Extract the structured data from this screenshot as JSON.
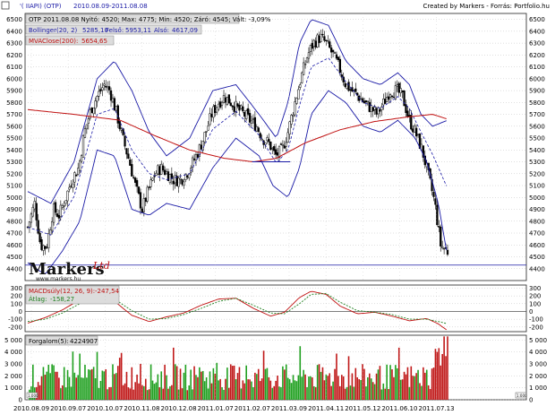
{
  "header": {
    "symbol": "'( IIAPI)  (OTP)",
    "range": "2010.08.09-2011.08.08",
    "credit": "Created by Markers - Forrás: Portfolio.hu"
  },
  "price_panel": {
    "info_line": "OTP 2011.08.08 Nyitó: 4520; Max: 4775; Min: 4520; Záró: 4545; Vált: -3,09%",
    "bollinger_label": "Bollinger(20, 2)",
    "bollinger_mid": "5285,10",
    "bollinger_upper_label": "Felső:",
    "bollinger_upper": "5953,11",
    "bollinger_lower_label": "Alsó:",
    "bollinger_lower": "4617,09",
    "mva_label": "MVAClose(200):",
    "mva_value": "5654,65",
    "logo_text": "Markers",
    "logo_sub": "www.markers.hu",
    "logo_sig": "Ltd"
  },
  "macd_panel": {
    "label": "MACDsúly(12, 26, 9):",
    "value": "-247,54",
    "avg_label": "Átlag:",
    "avg_value": "-158,27"
  },
  "volume_panel": {
    "label": "Forgalom(5):",
    "value": "4224907",
    "edge_left": "1:000",
    "edge_right": "1:000"
  },
  "colors": {
    "candle": "#000000",
    "bollinger": "#1a1aa6",
    "mva": "#c01010",
    "macd": "#c01010",
    "macd_avg": "#208020",
    "volume_up": "#20a020",
    "volume_down": "#c01818",
    "grid": "#b0b0b0",
    "support": "#1a1aa6"
  },
  "chart_data": [
    {
      "type": "candlestick",
      "title": "OTP",
      "x_ticks": [
        "2010.08.09",
        "2010.09.07",
        "2010.10.07",
        "2010.11.08",
        "2010.12.08",
        "2011.01.07",
        "2011.02.07",
        "2011.03.09",
        "2011.04.11",
        "2011.05.12",
        "2011.06.10",
        "2011.07.13"
      ],
      "y_ticks": [
        4400,
        4500,
        4600,
        4700,
        4800,
        4900,
        5000,
        5100,
        5200,
        5300,
        5400,
        5500,
        5600,
        5700,
        5800,
        5900,
        6000,
        6100,
        6200,
        6300,
        6400,
        6500
      ],
      "ylim": [
        4300,
        6550
      ],
      "close_path": [
        [
          0,
          4750
        ],
        [
          6,
          4950
        ],
        [
          11,
          4600
        ],
        [
          16,
          4580
        ],
        [
          22,
          4900
        ],
        [
          27,
          4850
        ],
        [
          33,
          5000
        ],
        [
          38,
          5150
        ],
        [
          44,
          5250
        ],
        [
          49,
          5550
        ],
        [
          55,
          5750
        ],
        [
          60,
          5850
        ],
        [
          66,
          5950
        ],
        [
          71,
          5900
        ],
        [
          77,
          5700
        ],
        [
          82,
          5500
        ],
        [
          88,
          5300
        ],
        [
          93,
          5100
        ],
        [
          99,
          4900
        ],
        [
          104,
          5050
        ],
        [
          110,
          5200
        ],
        [
          115,
          5250
        ],
        [
          121,
          5200
        ],
        [
          126,
          5150
        ],
        [
          132,
          5150
        ],
        [
          137,
          5200
        ],
        [
          143,
          5300
        ],
        [
          148,
          5400
        ],
        [
          154,
          5550
        ],
        [
          159,
          5700
        ],
        [
          165,
          5800
        ],
        [
          170,
          5850
        ],
        [
          176,
          5800
        ],
        [
          181,
          5750
        ],
        [
          187,
          5700
        ],
        [
          192,
          5650
        ],
        [
          198,
          5600
        ],
        [
          203,
          5500
        ],
        [
          209,
          5450
        ],
        [
          214,
          5350
        ],
        [
          220,
          5400
        ],
        [
          225,
          5550
        ],
        [
          231,
          5800
        ],
        [
          236,
          6000
        ],
        [
          242,
          6200
        ],
        [
          247,
          6300
        ],
        [
          253,
          6350
        ],
        [
          258,
          6300
        ],
        [
          264,
          6200
        ],
        [
          269,
          6100
        ],
        [
          275,
          5950
        ],
        [
          280,
          5900
        ],
        [
          286,
          5850
        ],
        [
          291,
          5800
        ],
        [
          297,
          5750
        ],
        [
          302,
          5700
        ],
        [
          308,
          5800
        ],
        [
          313,
          5900
        ],
        [
          319,
          5900
        ],
        [
          324,
          5850
        ],
        [
          330,
          5650
        ],
        [
          335,
          5550
        ],
        [
          341,
          5400
        ],
        [
          346,
          5200
        ],
        [
          352,
          4950
        ],
        [
          357,
          4600
        ],
        [
          363,
          4545
        ]
      ],
      "bollinger_upper": [
        [
          0,
          5050
        ],
        [
          20,
          4950
        ],
        [
          40,
          5300
        ],
        [
          60,
          6000
        ],
        [
          75,
          6150
        ],
        [
          90,
          5900
        ],
        [
          105,
          5550
        ],
        [
          120,
          5350
        ],
        [
          140,
          5500
        ],
        [
          160,
          5900
        ],
        [
          180,
          5950
        ],
        [
          200,
          5700
        ],
        [
          215,
          5500
        ],
        [
          225,
          5800
        ],
        [
          235,
          6300
        ],
        [
          245,
          6500
        ],
        [
          260,
          6450
        ],
        [
          275,
          6150
        ],
        [
          290,
          6000
        ],
        [
          305,
          5950
        ],
        [
          320,
          6050
        ],
        [
          330,
          5950
        ],
        [
          340,
          5700
        ],
        [
          350,
          5600
        ],
        [
          363,
          5650
        ]
      ],
      "bollinger_lower": [
        [
          0,
          4450
        ],
        [
          15,
          4350
        ],
        [
          30,
          4550
        ],
        [
          45,
          4800
        ],
        [
          60,
          5400
        ],
        [
          75,
          5350
        ],
        [
          90,
          4900
        ],
        [
          105,
          4850
        ],
        [
          120,
          4950
        ],
        [
          140,
          4900
        ],
        [
          160,
          5250
        ],
        [
          180,
          5500
        ],
        [
          200,
          5350
        ],
        [
          212,
          5100
        ],
        [
          225,
          5000
        ],
        [
          235,
          5250
        ],
        [
          245,
          5700
        ],
        [
          260,
          5900
        ],
        [
          275,
          5800
        ],
        [
          290,
          5600
        ],
        [
          305,
          5550
        ],
        [
          320,
          5650
        ],
        [
          335,
          5500
        ],
        [
          345,
          5300
        ],
        [
          355,
          4950
        ],
        [
          363,
          4500
        ]
      ],
      "mva200": [
        [
          0,
          5740
        ],
        [
          40,
          5700
        ],
        [
          80,
          5650
        ],
        [
          110,
          5520
        ],
        [
          140,
          5400
        ],
        [
          170,
          5330
        ],
        [
          195,
          5300
        ],
        [
          215,
          5330
        ],
        [
          240,
          5460
        ],
        [
          270,
          5570
        ],
        [
          300,
          5640
        ],
        [
          330,
          5680
        ],
        [
          350,
          5700
        ],
        [
          363,
          5660
        ]
      ],
      "support_line": {
        "y": 5300,
        "x_from": 194,
        "x_to": 227
      },
      "baseline": 4430
    },
    {
      "type": "line",
      "title": "MACD",
      "y_ticks": [
        300,
        200,
        100,
        0,
        -100,
        -200
      ],
      "ylim": [
        -260,
        340
      ],
      "series": [
        {
          "name": "MACDsúly(12, 26, 9)",
          "values": [
            [
              0,
              -150
            ],
            [
              15,
              -80
            ],
            [
              30,
              20
            ],
            [
              45,
              150
            ],
            [
              60,
              220
            ],
            [
              75,
              130
            ],
            [
              90,
              -50
            ],
            [
              105,
              -130
            ],
            [
              120,
              -70
            ],
            [
              135,
              -20
            ],
            [
              150,
              80
            ],
            [
              165,
              160
            ],
            [
              180,
              170
            ],
            [
              195,
              40
            ],
            [
              210,
              -60
            ],
            [
              222,
              -10
            ],
            [
              235,
              180
            ],
            [
              245,
              260
            ],
            [
              258,
              220
            ],
            [
              270,
              70
            ],
            [
              285,
              -30
            ],
            [
              300,
              -10
            ],
            [
              315,
              -60
            ],
            [
              330,
              -120
            ],
            [
              345,
              -90
            ],
            [
              355,
              -160
            ],
            [
              363,
              -247
            ]
          ]
        },
        {
          "name": "Átlag",
          "values": [
            [
              0,
              -130
            ],
            [
              15,
              -100
            ],
            [
              30,
              -20
            ],
            [
              45,
              100
            ],
            [
              60,
              190
            ],
            [
              75,
              160
            ],
            [
              90,
              10
            ],
            [
              105,
              -100
            ],
            [
              120,
              -90
            ],
            [
              135,
              -40
            ],
            [
              150,
              40
            ],
            [
              165,
              130
            ],
            [
              180,
              170
            ],
            [
              195,
              80
            ],
            [
              210,
              -20
            ],
            [
              222,
              -30
            ],
            [
              235,
              100
            ],
            [
              245,
              220
            ],
            [
              258,
              230
            ],
            [
              270,
              120
            ],
            [
              285,
              10
            ],
            [
              300,
              -10
            ],
            [
              315,
              -40
            ],
            [
              330,
              -100
            ],
            [
              345,
              -100
            ],
            [
              355,
              -130
            ],
            [
              363,
              -158
            ]
          ]
        }
      ]
    },
    {
      "type": "bar",
      "title": "Forgalom",
      "y_ticks": [
        5000,
        4000,
        3000,
        2000,
        1000,
        0
      ],
      "unit": "thousand",
      "ylim": [
        0,
        5400
      ]
    }
  ]
}
